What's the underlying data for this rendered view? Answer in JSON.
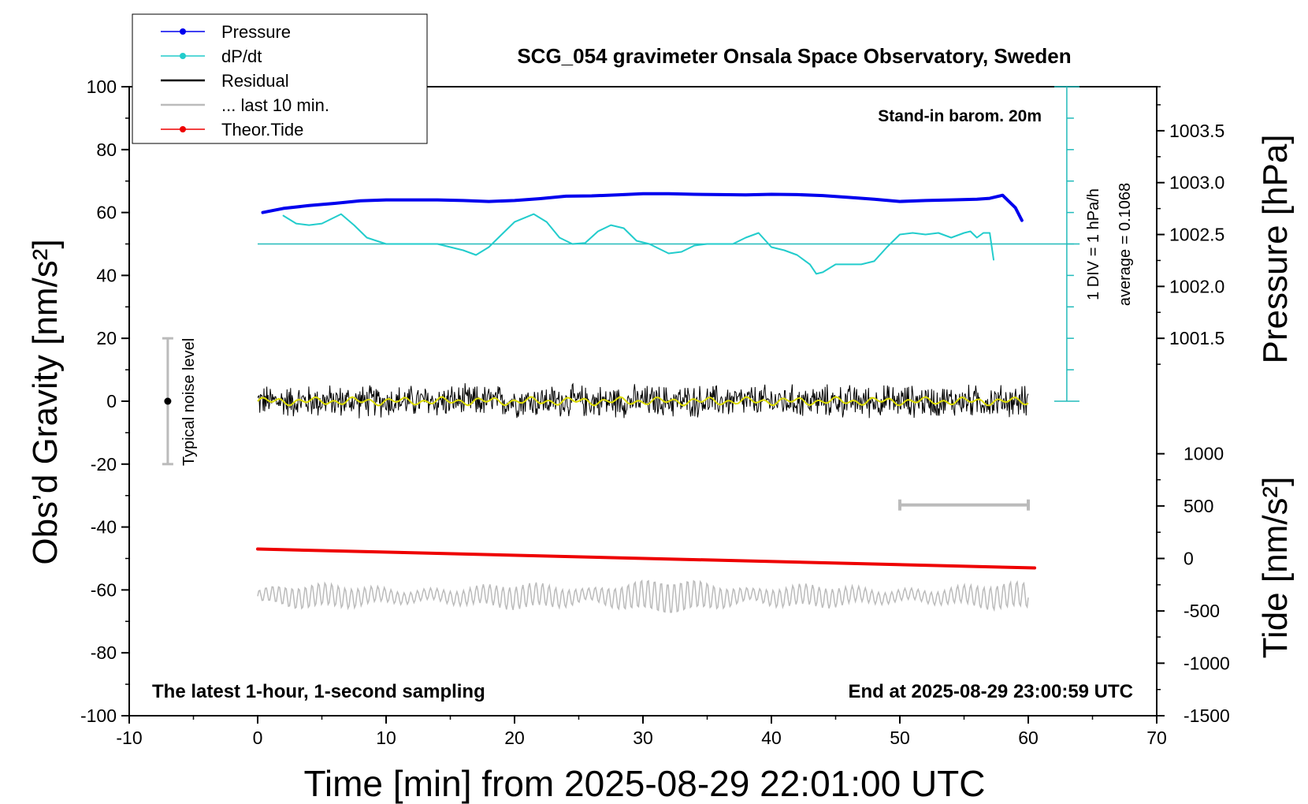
{
  "chart_data": {
    "type": "line",
    "title": "SCG_054 gravimeter Onsala Space Observatory, Sweden",
    "xlabel": "Time [min] from 2025-08-29 22:01:00 UTC",
    "ylabel_left": "Obs’d Gravity [nm/s²]",
    "ylabel_right_top": "Pressure [hPa]",
    "ylabel_right_bottom": "Tide [nm/s²]",
    "xlim": [
      -10,
      70
    ],
    "ylim_left": [
      -100,
      100
    ],
    "x_ticks": [
      -10,
      0,
      10,
      20,
      30,
      40,
      50,
      60,
      70
    ],
    "x_tick_labels": [
      "-10",
      "0",
      "10",
      "20",
      "30",
      "40",
      "50",
      "60",
      "70"
    ],
    "y_left_ticks": [
      -100,
      -80,
      -60,
      -40,
      -20,
      0,
      20,
      40,
      60,
      80,
      100
    ],
    "y_left_tick_labels": [
      "-100",
      "-80",
      "-60",
      "-40",
      "-20",
      "0",
      "20",
      "40",
      "60",
      "80",
      "100"
    ],
    "pressure_axis": {
      "ticks": [
        1001.5,
        1002.0,
        1002.5,
        1003.0,
        1003.5
      ],
      "tick_labels": [
        "1001.5",
        "1002.0",
        "1002.5",
        "1003.0",
        "1003.5"
      ],
      "ticks_left_units": [
        20,
        36.5,
        53,
        69.5,
        86
      ]
    },
    "tide_axis": {
      "ticks": [
        -1500,
        -1000,
        -500,
        0,
        500,
        1000
      ],
      "tick_labels": [
        "-1500",
        "-1000",
        "-500",
        "0",
        "500",
        "1000"
      ],
      "ticks_left_units": [
        -100,
        -83.3,
        -66.7,
        -50,
        -33.3,
        -16.7
      ]
    },
    "grid": false,
    "legend_position": "top-left",
    "legend": [
      {
        "label": "Pressure",
        "color": "#0000ee",
        "marker": true
      },
      {
        "label": "dP/dt",
        "color": "#22cccc",
        "marker": true
      },
      {
        "label": "Residual",
        "color": "#000000",
        "marker": false
      },
      {
        "label": "... last 10 min.",
        "color": "#bbbbbb",
        "marker": false
      },
      {
        "label": "Theor.Tide",
        "color": "#ee0000",
        "marker": true
      }
    ],
    "annotations": {
      "barometer": "Stand-in barom. 20m",
      "scale_div": "1 DIV = 1 hPa/h",
      "average": "average = 0.1068",
      "noise_label": "Typical noise level",
      "sampling": "The latest 1-hour, 1-second sampling",
      "end_time": "End at 2025-08-29 23:00:59 UTC"
    },
    "noise_bar": {
      "x": -7,
      "center": 0,
      "low": -20,
      "high": 20
    },
    "last10_bar": {
      "x_start": 50,
      "x_end": 60,
      "y": -33
    },
    "dpdt_scale": {
      "x": 63,
      "y_min": 0,
      "y_max": 100,
      "div_ticks": [
        0,
        10,
        20,
        30,
        40,
        50,
        60,
        70,
        80,
        90,
        100
      ],
      "baseline": 50
    },
    "series": [
      {
        "name": "Pressure",
        "color": "#0000ee",
        "x": [
          0.4,
          2,
          4,
          6,
          8,
          10,
          12,
          14,
          16,
          18,
          20,
          22,
          24,
          26,
          28,
          30,
          32,
          34,
          36,
          38,
          40,
          42,
          44,
          46,
          48,
          50,
          52,
          54,
          56,
          57,
          58,
          59,
          59.5
        ],
        "y": [
          60,
          61.3,
          62.2,
          62.9,
          63.7,
          64,
          64,
          64,
          63.8,
          63.5,
          63.8,
          64.4,
          65.2,
          65.3,
          65.6,
          66,
          66,
          65.8,
          65.7,
          65.6,
          65.8,
          65.7,
          65.4,
          64.8,
          64.2,
          63.5,
          63.8,
          64,
          64.2,
          64.5,
          65.5,
          61.5,
          57.5
        ]
      },
      {
        "name": "dP/dt",
        "color": "#22cccc",
        "x": [
          2,
          3,
          4,
          5,
          6.5,
          7.5,
          8.5,
          10,
          12,
          14,
          16,
          17,
          18,
          19,
          20,
          21.5,
          22.5,
          23.5,
          24.5,
          25.5,
          26.5,
          27.5,
          28.5,
          29.5,
          30.5,
          32,
          33,
          34,
          35,
          36,
          37,
          38,
          39,
          40,
          41,
          42,
          43,
          43.5,
          44,
          45,
          46,
          47,
          48,
          49,
          50,
          51,
          52,
          53,
          54,
          55,
          55.5,
          56,
          56.5,
          57,
          57.3
        ],
        "y": [
          59,
          56.5,
          56,
          56.5,
          59.5,
          56,
          52,
          50,
          50,
          50,
          48,
          46.5,
          49,
          53,
          57,
          59.5,
          57,
          52,
          50,
          50.3,
          54,
          56,
          55,
          51,
          50,
          47,
          47.5,
          49.5,
          50,
          50,
          50,
          52,
          53.5,
          49,
          48,
          46.5,
          43.5,
          40.5,
          41,
          43.5,
          43.5,
          43.5,
          44.5,
          49,
          53,
          53.5,
          53,
          53.5,
          52,
          53.5,
          54,
          52,
          53.5,
          53.5,
          45
        ]
      },
      {
        "name": "Theor.Tide",
        "color": "#ee0000",
        "x": [
          0,
          60.5
        ],
        "y": [
          -47,
          -53
        ]
      }
    ],
    "residual_band": {
      "x_start": 0,
      "x_end": 60,
      "center": 0,
      "amplitude": 5
    },
    "last10_wave": {
      "x_start": 0,
      "x_end": 60,
      "center": -62,
      "amplitude": 5
    }
  }
}
